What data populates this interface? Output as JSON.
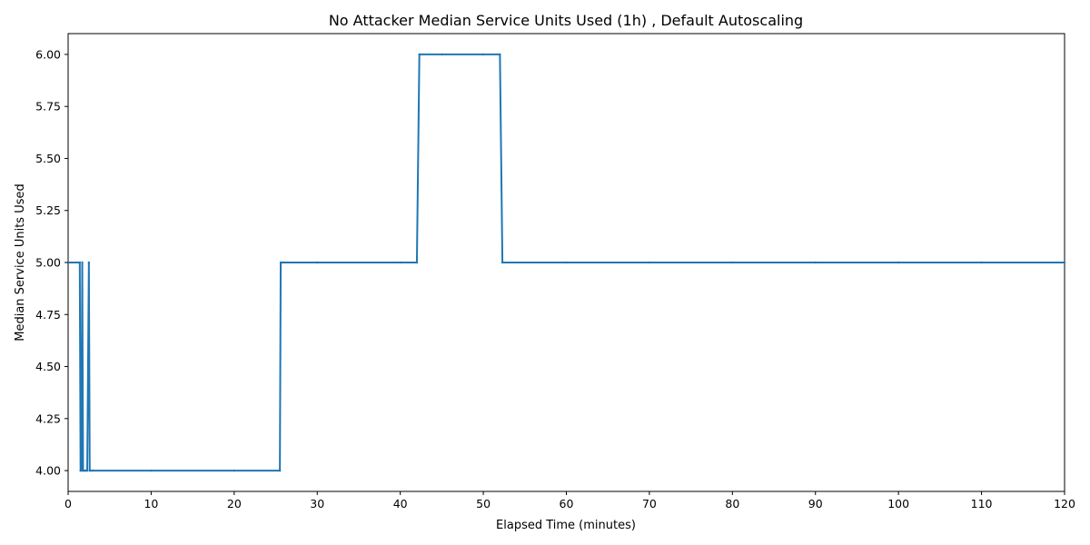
{
  "chart_data": {
    "type": "line",
    "title": "No Attacker Median Service Units Used (1h) , Default Autoscaling",
    "xlabel": "Elapsed Time (minutes)",
    "ylabel": "Median Service Units Used",
    "xlim": [
      0,
      120
    ],
    "ylim": [
      3.9,
      6.1
    ],
    "x_ticks": [
      0,
      10,
      20,
      30,
      40,
      50,
      60,
      70,
      80,
      90,
      100,
      110,
      120
    ],
    "x_tick_labels": [
      "0",
      "10",
      "20",
      "30",
      "40",
      "50",
      "60",
      "70",
      "80",
      "90",
      "100",
      "110",
      "120"
    ],
    "y_ticks": [
      4.0,
      4.25,
      4.5,
      4.75,
      5.0,
      5.25,
      5.5,
      5.75,
      6.0
    ],
    "y_tick_labels": [
      "4.00",
      "4.25",
      "4.50",
      "4.75",
      "5.00",
      "5.25",
      "5.50",
      "5.75",
      "6.00"
    ],
    "grid": false,
    "line_color": "#1f77b4",
    "series": [
      {
        "x": [
          0,
          1.4,
          1.5,
          1.6,
          1.7,
          1.8,
          1.9,
          2.0,
          2.1,
          2.2,
          2.3,
          2.5,
          2.6,
          2.7,
          3.0,
          10,
          20,
          25.5,
          25.6,
          25.9,
          30,
          40,
          42.0,
          42.3,
          45,
          50,
          52.0,
          52.3,
          60,
          70,
          80,
          90,
          100,
          110,
          120
        ],
        "y": [
          5,
          5,
          4,
          4,
          5,
          4,
          4,
          4,
          4,
          4,
          4,
          5,
          4,
          4,
          4,
          4,
          4,
          4,
          5,
          5,
          5,
          5,
          5,
          6,
          6,
          6,
          6,
          5,
          5,
          5,
          5,
          5,
          5,
          5,
          5
        ]
      }
    ]
  }
}
